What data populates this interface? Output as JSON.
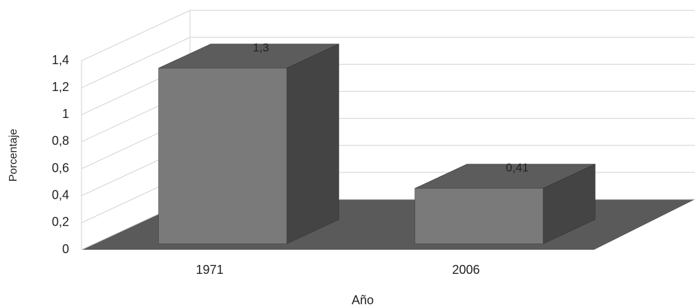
{
  "chart_data": {
    "type": "bar3d",
    "categories": [
      "1971",
      "2006"
    ],
    "values": [
      1.3,
      0.41
    ],
    "value_labels": [
      "1,3",
      "0,41"
    ],
    "color": "#7a7a7a",
    "ylim": [
      0,
      1.4
    ],
    "yticks": [
      0,
      {
        "value": 0.2,
        "label": "0,2"
      },
      {
        "value": 0.4,
        "label": "0,4"
      },
      {
        "value": 0.6,
        "label": "0,6"
      },
      {
        "value": 0.8,
        "label": "0,8"
      },
      1,
      {
        "value": 1.2,
        "label": "1,2"
      },
      {
        "value": 1.4,
        "label": "1,4"
      }
    ],
    "xlabel": "Año",
    "ylabel": "Porcentaje",
    "grid": true
  }
}
